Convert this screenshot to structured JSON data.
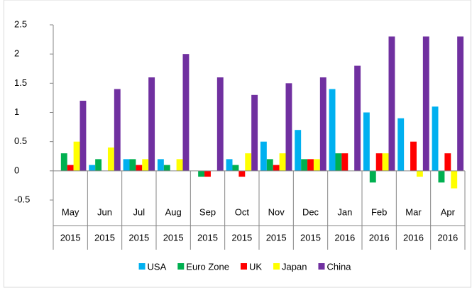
{
  "chart_data": {
    "type": "bar",
    "categories": [
      "May",
      "Jun",
      "Jul",
      "Aug",
      "Sep",
      "Oct",
      "Nov",
      "Dec",
      "Jan",
      "Feb",
      "Mar",
      "Apr"
    ],
    "years": [
      "2015",
      "2015",
      "2015",
      "2015",
      "2015",
      "2015",
      "2015",
      "2015",
      "2016",
      "2016",
      "2016",
      "2016"
    ],
    "series": [
      {
        "name": "USA",
        "color": "#00b0f0",
        "values": [
          0,
          0.1,
          0.2,
          0.2,
          0,
          0.2,
          0.5,
          0.7,
          1.4,
          1.0,
          0.9,
          1.1
        ]
      },
      {
        "name": "Euro Zone",
        "color": "#00b050",
        "values": [
          0.3,
          0.2,
          0.2,
          0.1,
          -0.1,
          0.1,
          0.2,
          0.2,
          0.3,
          -0.2,
          0,
          -0.2
        ]
      },
      {
        "name": "UK",
        "color": "#ff0000",
        "values": [
          0.1,
          0,
          0.1,
          0,
          -0.1,
          -0.1,
          0.1,
          0.2,
          0.3,
          0.3,
          0.5,
          0.3
        ]
      },
      {
        "name": "Japan",
        "color": "#ffff00",
        "values": [
          0.5,
          0.4,
          0.2,
          0.2,
          0,
          0.3,
          0.3,
          0.2,
          0,
          0.3,
          -0.1,
          -0.3
        ]
      },
      {
        "name": "China",
        "color": "#7030a0",
        "values": [
          1.2,
          1.4,
          1.6,
          2.0,
          1.6,
          1.3,
          1.5,
          1.6,
          1.8,
          2.3,
          2.3,
          2.3
        ]
      }
    ],
    "ylim": [
      -0.5,
      2.5
    ],
    "yticks": [
      -0.5,
      0,
      0.5,
      1,
      1.5,
      2,
      2.5
    ],
    "grid": false,
    "legend": "bottom"
  }
}
